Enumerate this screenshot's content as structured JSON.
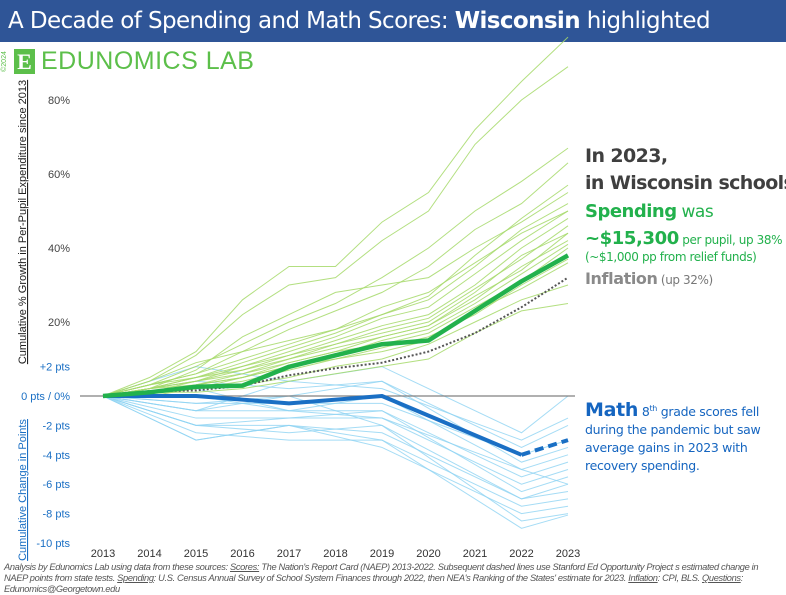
{
  "header": {
    "title_prefix": "A Decade of Spending and Math Scores: ",
    "title_state": "Wisconsin",
    "title_suffix": " highlighted"
  },
  "logo": {
    "copyright": "©2024",
    "mark": "E",
    "name": "EDUNOMICS LAB"
  },
  "annotation": {
    "line1": "In 2023,",
    "line2": "in Wisconsin schools:",
    "spending_word": "Spending",
    "was": " was",
    "amount": "~$15,300",
    "amount_detail": " per pupil, up 38%",
    "relief": "(~$1,000 pp from relief funds)",
    "inflation_word": "Inflation",
    "inflation_detail": " (up 32%)",
    "math_word": "Math",
    "math_grade": " 8",
    "math_sup": "th",
    "math_text": " grade scores fell during the pandemic but saw average gains in 2023 with recovery spending."
  },
  "footer": {
    "p1": "Analysis by Edunomics Lab using data from these sources: ",
    "scores_label": "Scores:",
    "p2": " The Nation's Report Card (NAEP) 2013-2022. Subsequent dashed lines use Stanford Ed Opportunity Project s estimated  change in NAEP points from state tests. ",
    "spending_label": "Spending",
    "p3": ": U.S. Census Annual Survey of School System Finances through 2022, then NEA's Ranking of the States' estimate for 2023. ",
    "inflation_label": "Inflation",
    "p4": ": CPI, BLS. ",
    "questions_label": "Questions",
    "p5": ": Edunomics@Georgetown.edu"
  },
  "colors": {
    "title_bg": "#2f5597",
    "spending_highlight": "#22b14c",
    "spending_other": "#a6d96a",
    "inflation": "#555555",
    "math_highlight": "#1a6fc4",
    "math_other": "#8fd3f2",
    "zero_line": "#808080"
  },
  "chart_data": {
    "type": "line",
    "x": [
      2013,
      2014,
      2015,
      2016,
      2017,
      2018,
      2019,
      2020,
      2021,
      2022,
      2023
    ],
    "x_tick_labels": [
      "2013",
      "2014",
      "2015",
      "2016",
      "2017",
      "2018",
      "2019",
      "2020",
      "2021",
      "2022",
      "2023"
    ],
    "ylabel_spending": "Cumulative % Growth in Per-Pupil Expenditure since 2013",
    "ylabel_math": "Cumulative Change in Points",
    "spending_ticks": [
      {
        "v": 80,
        "label": "80%"
      },
      {
        "v": 60,
        "label": "60%"
      },
      {
        "v": 40,
        "label": "40%"
      },
      {
        "v": 20,
        "label": "20%"
      }
    ],
    "points_ticks": [
      {
        "v": 2,
        "label": "+2 pts"
      },
      {
        "v": -2,
        "label": "-2 pts"
      },
      {
        "v": -4,
        "label": "-4 pts"
      },
      {
        "v": -6,
        "label": "-6 pts"
      },
      {
        "v": -8,
        "label": "-8 pts"
      },
      {
        "v": -10,
        "label": "-10 pts"
      }
    ],
    "zero_label": "0 pts / 0%",
    "spending_wisconsin": [
      0,
      1,
      2.5,
      2.8,
      7.9,
      11,
      14,
      15,
      23,
      31,
      38
    ],
    "inflation": [
      0,
      1.3,
      1.5,
      2.8,
      5.6,
      7.5,
      9,
      12,
      17,
      24,
      32
    ],
    "math_years": [
      2013,
      2015,
      2017,
      2019,
      2022,
      2023
    ],
    "math_wisconsin": [
      0,
      0,
      -0.5,
      0,
      -4,
      -3
    ],
    "math_wisconsin_dashed_from": 2022,
    "spending_other_states": [
      [
        0,
        5,
        12,
        26,
        35,
        35,
        47,
        55,
        72,
        85,
        97
      ],
      [
        0,
        4,
        11,
        22,
        30,
        32,
        42,
        50,
        68,
        80,
        89
      ],
      [
        0,
        3,
        8,
        14,
        20,
        25,
        32,
        40,
        50,
        58,
        67
      ],
      [
        0,
        3,
        6,
        12,
        18,
        23,
        28,
        35,
        45,
        52,
        63
      ],
      [
        0,
        2,
        7,
        16,
        22,
        28,
        30,
        32,
        40,
        47,
        55
      ],
      [
        0,
        2,
        5,
        9,
        13,
        17,
        22,
        27,
        38,
        48,
        57
      ],
      [
        0,
        3,
        6,
        10,
        14,
        18,
        22,
        26,
        35,
        45,
        52
      ],
      [
        0,
        1,
        4,
        8,
        12,
        16,
        21,
        24,
        33,
        42,
        50
      ],
      [
        0,
        2,
        5,
        8,
        11,
        15,
        19,
        22,
        30,
        40,
        48
      ],
      [
        0,
        1,
        3,
        6,
        10,
        14,
        18,
        21,
        29,
        37,
        46
      ],
      [
        0,
        2,
        4,
        7,
        11,
        14,
        17,
        20,
        28,
        38,
        44
      ],
      [
        0,
        1,
        3,
        5,
        9,
        12,
        16,
        19,
        26,
        35,
        42
      ],
      [
        0,
        1,
        2,
        5,
        8,
        11,
        15,
        18,
        25,
        33,
        41
      ],
      [
        0,
        2,
        4,
        6,
        9,
        12,
        14,
        17,
        24,
        31,
        40
      ],
      [
        0,
        0,
        2,
        4,
        7,
        10,
        13,
        16,
        22,
        30,
        37
      ],
      [
        0,
        1,
        2,
        3,
        5,
        8,
        10,
        14,
        20,
        26,
        30
      ],
      [
        0,
        1,
        1,
        2,
        4,
        6,
        8,
        10,
        17,
        23,
        25
      ],
      [
        0,
        3,
        5,
        7,
        10,
        13,
        16,
        19,
        27,
        34,
        44
      ],
      [
        0,
        2,
        3,
        5,
        8,
        10,
        12,
        15,
        23,
        29,
        36
      ],
      [
        0,
        4,
        9,
        12,
        15,
        18,
        24,
        28,
        36,
        44,
        50
      ]
    ],
    "math_other_states": [
      [
        0,
        2,
        1,
        2,
        -2.5,
        0
      ],
      [
        0,
        1,
        0.5,
        1,
        -3.5,
        -2
      ],
      [
        0,
        -0.5,
        0,
        1,
        -4.5,
        -3.5
      ],
      [
        0,
        -1,
        -1,
        0,
        -5,
        -4
      ],
      [
        0,
        -1.5,
        -1.5,
        -1,
        -5.5,
        -4.5
      ],
      [
        0,
        -2,
        -1.5,
        -1.5,
        -6,
        -5
      ],
      [
        0,
        -2,
        -2.5,
        -2,
        -7,
        -6
      ],
      [
        0,
        -3,
        -2,
        -2.5,
        -7,
        -6.5
      ],
      [
        0,
        -2.5,
        -3,
        -3,
        -7.5,
        -7
      ],
      [
        0,
        -3,
        -2,
        -3.5,
        -8,
        -7.5
      ],
      [
        0,
        -1,
        0,
        -2,
        -8.5,
        -8
      ],
      [
        0,
        0.5,
        -1,
        -1,
        -6.5,
        -5.5
      ],
      [
        0,
        -0.5,
        -0.5,
        -0.5,
        -4,
        -3
      ],
      [
        0,
        -1,
        1,
        0.5,
        -3,
        -1.5
      ],
      [
        0,
        -2,
        -2,
        -3,
        -9,
        -8.1
      ],
      [
        0,
        0,
        -1,
        -1.5,
        -5,
        -6
      ]
    ]
  }
}
